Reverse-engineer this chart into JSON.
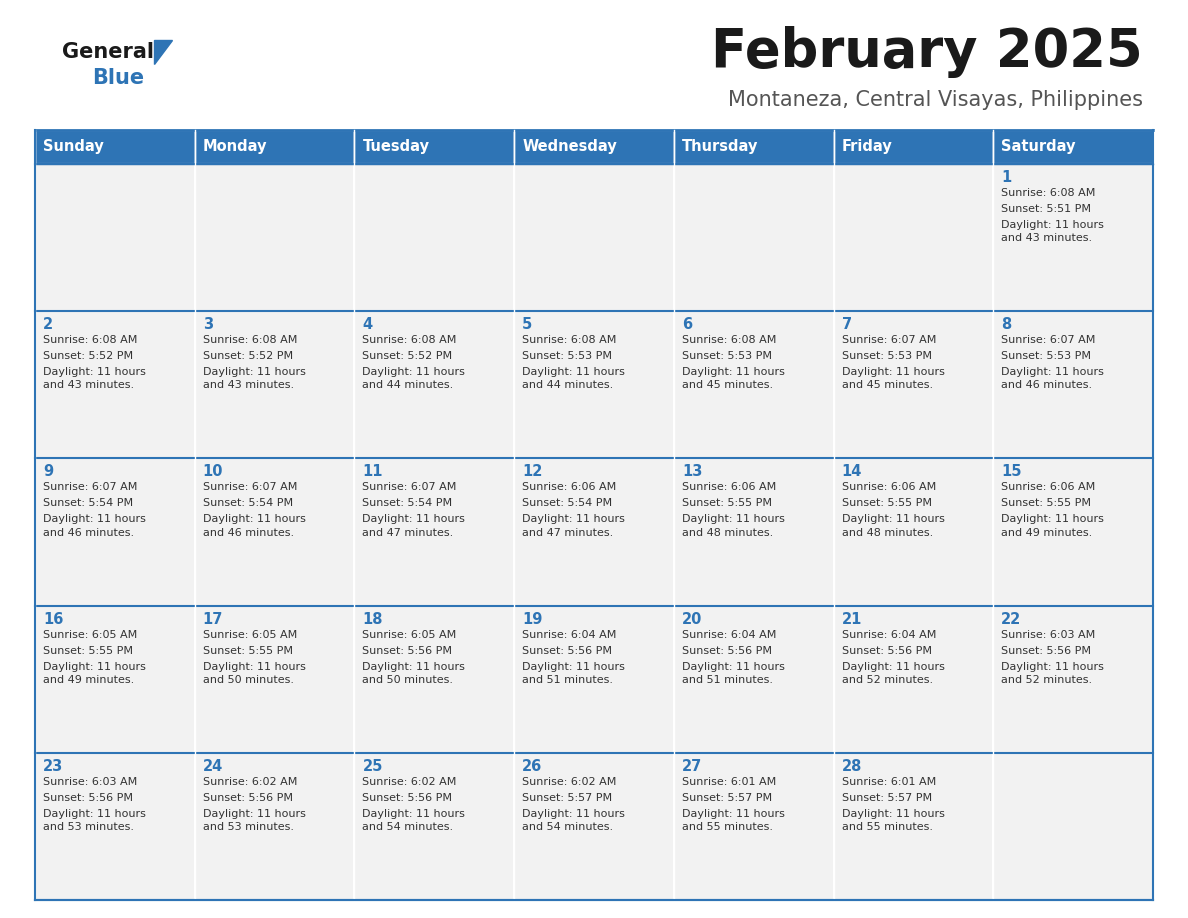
{
  "title": "February 2025",
  "subtitle": "Montaneza, Central Visayas, Philippines",
  "header_bg": "#2e74b5",
  "header_text_color": "#ffffff",
  "day_names": [
    "Sunday",
    "Monday",
    "Tuesday",
    "Wednesday",
    "Thursday",
    "Friday",
    "Saturday"
  ],
  "cell_bg": "#f2f2f2",
  "cell_text_color": "#333333",
  "day_num_color": "#2e74b5",
  "border_color": "#2e74b5",
  "logo_general_color": "#1a1a1a",
  "logo_blue_color": "#2e74b5",
  "title_color": "#1a1a1a",
  "subtitle_color": "#555555",
  "calendar": [
    [
      null,
      null,
      null,
      null,
      null,
      null,
      {
        "day": 1,
        "sunrise": "6:08 AM",
        "sunset": "5:51 PM",
        "daylight": "11 hours\nand 43 minutes."
      }
    ],
    [
      {
        "day": 2,
        "sunrise": "6:08 AM",
        "sunset": "5:52 PM",
        "daylight": "11 hours\nand 43 minutes."
      },
      {
        "day": 3,
        "sunrise": "6:08 AM",
        "sunset": "5:52 PM",
        "daylight": "11 hours\nand 43 minutes."
      },
      {
        "day": 4,
        "sunrise": "6:08 AM",
        "sunset": "5:52 PM",
        "daylight": "11 hours\nand 44 minutes."
      },
      {
        "day": 5,
        "sunrise": "6:08 AM",
        "sunset": "5:53 PM",
        "daylight": "11 hours\nand 44 minutes."
      },
      {
        "day": 6,
        "sunrise": "6:08 AM",
        "sunset": "5:53 PM",
        "daylight": "11 hours\nand 45 minutes."
      },
      {
        "day": 7,
        "sunrise": "6:07 AM",
        "sunset": "5:53 PM",
        "daylight": "11 hours\nand 45 minutes."
      },
      {
        "day": 8,
        "sunrise": "6:07 AM",
        "sunset": "5:53 PM",
        "daylight": "11 hours\nand 46 minutes."
      }
    ],
    [
      {
        "day": 9,
        "sunrise": "6:07 AM",
        "sunset": "5:54 PM",
        "daylight": "11 hours\nand 46 minutes."
      },
      {
        "day": 10,
        "sunrise": "6:07 AM",
        "sunset": "5:54 PM",
        "daylight": "11 hours\nand 46 minutes."
      },
      {
        "day": 11,
        "sunrise": "6:07 AM",
        "sunset": "5:54 PM",
        "daylight": "11 hours\nand 47 minutes."
      },
      {
        "day": 12,
        "sunrise": "6:06 AM",
        "sunset": "5:54 PM",
        "daylight": "11 hours\nand 47 minutes."
      },
      {
        "day": 13,
        "sunrise": "6:06 AM",
        "sunset": "5:55 PM",
        "daylight": "11 hours\nand 48 minutes."
      },
      {
        "day": 14,
        "sunrise": "6:06 AM",
        "sunset": "5:55 PM",
        "daylight": "11 hours\nand 48 minutes."
      },
      {
        "day": 15,
        "sunrise": "6:06 AM",
        "sunset": "5:55 PM",
        "daylight": "11 hours\nand 49 minutes."
      }
    ],
    [
      {
        "day": 16,
        "sunrise": "6:05 AM",
        "sunset": "5:55 PM",
        "daylight": "11 hours\nand 49 minutes."
      },
      {
        "day": 17,
        "sunrise": "6:05 AM",
        "sunset": "5:55 PM",
        "daylight": "11 hours\nand 50 minutes."
      },
      {
        "day": 18,
        "sunrise": "6:05 AM",
        "sunset": "5:56 PM",
        "daylight": "11 hours\nand 50 minutes."
      },
      {
        "day": 19,
        "sunrise": "6:04 AM",
        "sunset": "5:56 PM",
        "daylight": "11 hours\nand 51 minutes."
      },
      {
        "day": 20,
        "sunrise": "6:04 AM",
        "sunset": "5:56 PM",
        "daylight": "11 hours\nand 51 minutes."
      },
      {
        "day": 21,
        "sunrise": "6:04 AM",
        "sunset": "5:56 PM",
        "daylight": "11 hours\nand 52 minutes."
      },
      {
        "day": 22,
        "sunrise": "6:03 AM",
        "sunset": "5:56 PM",
        "daylight": "11 hours\nand 52 minutes."
      }
    ],
    [
      {
        "day": 23,
        "sunrise": "6:03 AM",
        "sunset": "5:56 PM",
        "daylight": "11 hours\nand 53 minutes."
      },
      {
        "day": 24,
        "sunrise": "6:02 AM",
        "sunset": "5:56 PM",
        "daylight": "11 hours\nand 53 minutes."
      },
      {
        "day": 25,
        "sunrise": "6:02 AM",
        "sunset": "5:56 PM",
        "daylight": "11 hours\nand 54 minutes."
      },
      {
        "day": 26,
        "sunrise": "6:02 AM",
        "sunset": "5:57 PM",
        "daylight": "11 hours\nand 54 minutes."
      },
      {
        "day": 27,
        "sunrise": "6:01 AM",
        "sunset": "5:57 PM",
        "daylight": "11 hours\nand 55 minutes."
      },
      {
        "day": 28,
        "sunrise": "6:01 AM",
        "sunset": "5:57 PM",
        "daylight": "11 hours\nand 55 minutes."
      },
      null
    ]
  ]
}
